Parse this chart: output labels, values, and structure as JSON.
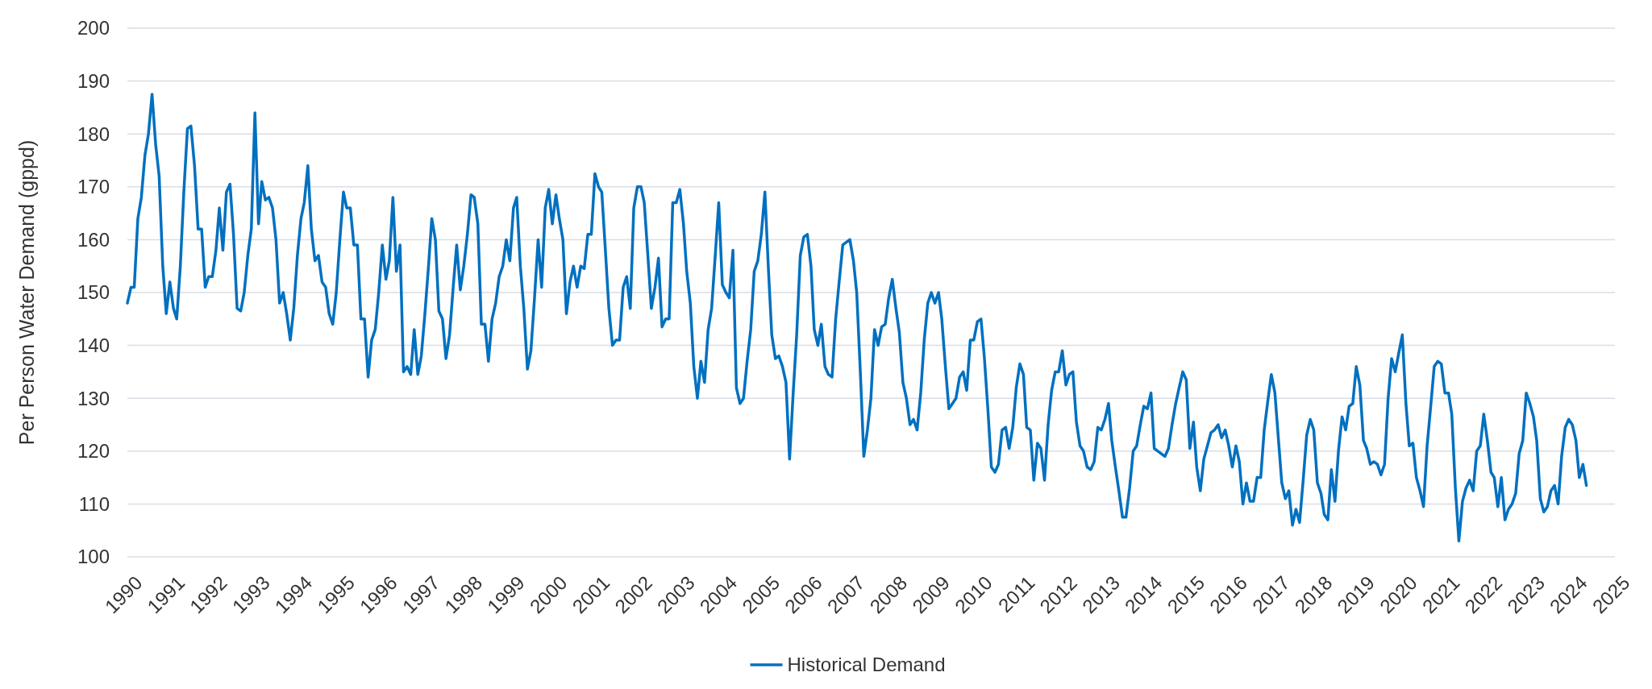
{
  "chart_data": {
    "type": "line",
    "ylabel": "Per Person Water Demand (gppd)",
    "xlim": [
      "1990",
      "2025"
    ],
    "xticks": [
      "1990",
      "1991",
      "1992",
      "1993",
      "1994",
      "1995",
      "1996",
      "1997",
      "1998",
      "1999",
      "2000",
      "2001",
      "2002",
      "2003",
      "2004",
      "2005",
      "2006",
      "2007",
      "2008",
      "2009",
      "2010",
      "2011",
      "2012",
      "2013",
      "2014",
      "2015",
      "2016",
      "2017",
      "2018",
      "2019",
      "2020",
      "2021",
      "2022",
      "2023",
      "2024",
      "2025"
    ],
    "ylim": [
      100,
      200
    ],
    "yticks": [
      100,
      110,
      120,
      130,
      140,
      150,
      160,
      170,
      180,
      190,
      200
    ],
    "grid": "y",
    "legend": "bottom",
    "line_style": "solid",
    "x": [
      "1990-01",
      "1990-02",
      "1990-03",
      "1990-04",
      "1990-05",
      "1990-06",
      "1990-07",
      "1990-08",
      "1990-09",
      "1990-10",
      "1990-11",
      "1990-12",
      "1991-01",
      "1991-02",
      "1991-03",
      "1991-04",
      "1991-05",
      "1991-06",
      "1991-07",
      "1991-08",
      "1991-09",
      "1991-10",
      "1991-11",
      "1991-12",
      "1992-01",
      "1992-02",
      "1992-03",
      "1992-04",
      "1992-05",
      "1992-06",
      "1992-07",
      "1992-08",
      "1992-09",
      "1992-10",
      "1992-11",
      "1992-12",
      "1993-01",
      "1993-02",
      "1993-03",
      "1993-04",
      "1993-05",
      "1993-06",
      "1993-07",
      "1993-08",
      "1993-09",
      "1993-10",
      "1993-11",
      "1993-12",
      "1994-01",
      "1994-02",
      "1994-03",
      "1994-04",
      "1994-05",
      "1994-06",
      "1994-07",
      "1994-08",
      "1994-09",
      "1994-10",
      "1994-11",
      "1994-12",
      "1995-01",
      "1995-02",
      "1995-03",
      "1995-04",
      "1995-05",
      "1995-06",
      "1995-07",
      "1995-08",
      "1995-09",
      "1995-10",
      "1995-11",
      "1995-12",
      "1996-01",
      "1996-02",
      "1996-03",
      "1996-04",
      "1996-05",
      "1996-06",
      "1996-07",
      "1996-08",
      "1996-09",
      "1996-10",
      "1996-11",
      "1996-12",
      "1997-01",
      "1997-02",
      "1997-03",
      "1997-04",
      "1997-05",
      "1997-06",
      "1997-07",
      "1997-08",
      "1997-09",
      "1997-10",
      "1997-11",
      "1997-12",
      "1998-01",
      "1998-02",
      "1998-03",
      "1998-04",
      "1998-05",
      "1998-06",
      "1998-07",
      "1998-08",
      "1998-09",
      "1998-10",
      "1998-11",
      "1998-12",
      "1999-01",
      "1999-02",
      "1999-03",
      "1999-04",
      "1999-05",
      "1999-06",
      "1999-07",
      "1999-08",
      "1999-09",
      "1999-10",
      "1999-11",
      "1999-12",
      "2000-01",
      "2000-02",
      "2000-03",
      "2000-04",
      "2000-05",
      "2000-06",
      "2000-07",
      "2000-08",
      "2000-09",
      "2000-10",
      "2000-11",
      "2000-12",
      "2001-01",
      "2001-02",
      "2001-03",
      "2001-04",
      "2001-05",
      "2001-06",
      "2001-07",
      "2001-08",
      "2001-09",
      "2001-10",
      "2001-11",
      "2001-12",
      "2002-01",
      "2002-02",
      "2002-03",
      "2002-04",
      "2002-05",
      "2002-06",
      "2002-07",
      "2002-08",
      "2002-09",
      "2002-10",
      "2002-11",
      "2002-12",
      "2003-01",
      "2003-02",
      "2003-03",
      "2003-04",
      "2003-05",
      "2003-06",
      "2003-07",
      "2003-08",
      "2003-09",
      "2003-10",
      "2003-11",
      "2003-12",
      "2004-01",
      "2004-02",
      "2004-03",
      "2004-04",
      "2004-05",
      "2004-06",
      "2004-07",
      "2004-08",
      "2004-09",
      "2004-10",
      "2004-11",
      "2004-12",
      "2005-01",
      "2005-02",
      "2005-03",
      "2005-04",
      "2005-05",
      "2005-06",
      "2005-07",
      "2005-08",
      "2005-09",
      "2005-10",
      "2005-11",
      "2005-12",
      "2006-01",
      "2006-02",
      "2006-03",
      "2006-04",
      "2006-05",
      "2006-06",
      "2006-07",
      "2006-08",
      "2006-09",
      "2006-10",
      "2006-11",
      "2006-12",
      "2007-01",
      "2007-02",
      "2007-03",
      "2007-04",
      "2007-05",
      "2007-06",
      "2007-07",
      "2007-08",
      "2007-09",
      "2007-10",
      "2007-11",
      "2007-12",
      "2008-01",
      "2008-02",
      "2008-03",
      "2008-04",
      "2008-05",
      "2008-06",
      "2008-07",
      "2008-08",
      "2008-09",
      "2008-10",
      "2008-11",
      "2008-12",
      "2009-01",
      "2009-02",
      "2009-03",
      "2009-04",
      "2009-05",
      "2009-06",
      "2009-07",
      "2009-08",
      "2009-09",
      "2009-10",
      "2009-11",
      "2009-12",
      "2010-01",
      "2010-02",
      "2010-03",
      "2010-04",
      "2010-05",
      "2010-06",
      "2010-07",
      "2010-08",
      "2010-09",
      "2010-10",
      "2010-11",
      "2010-12",
      "2011-01",
      "2011-02",
      "2011-03",
      "2011-04",
      "2011-05",
      "2011-06",
      "2011-07",
      "2011-08",
      "2011-09",
      "2011-10",
      "2011-11",
      "2011-12",
      "2012-01",
      "2012-02",
      "2012-03",
      "2012-04",
      "2012-05",
      "2012-06",
      "2012-07",
      "2012-08",
      "2012-09",
      "2012-10",
      "2012-11",
      "2012-12",
      "2013-01",
      "2013-02",
      "2013-03",
      "2013-04",
      "2013-05",
      "2013-06",
      "2013-07",
      "2013-08",
      "2013-09",
      "2013-10",
      "2013-11",
      "2013-12",
      "2014-01",
      "2014-02",
      "2014-03",
      "2014-04",
      "2014-05",
      "2014-06",
      "2014-07",
      "2014-08",
      "2014-09",
      "2014-10",
      "2014-11",
      "2014-12",
      "2015-01",
      "2015-02",
      "2015-03",
      "2015-04",
      "2015-05",
      "2015-06",
      "2015-07",
      "2015-08",
      "2015-09",
      "2015-10",
      "2015-11",
      "2015-12",
      "2016-01",
      "2016-02",
      "2016-03",
      "2016-04",
      "2016-05",
      "2016-06",
      "2016-07",
      "2016-08",
      "2016-09",
      "2016-10",
      "2016-11",
      "2016-12",
      "2017-01",
      "2017-02",
      "2017-03",
      "2017-04",
      "2017-05",
      "2017-06",
      "2017-07",
      "2017-08",
      "2017-09",
      "2017-10",
      "2017-11",
      "2017-12",
      "2018-01",
      "2018-02",
      "2018-03",
      "2018-04",
      "2018-05",
      "2018-06",
      "2018-07",
      "2018-08",
      "2018-09",
      "2018-10",
      "2018-11",
      "2018-12",
      "2019-01",
      "2019-02",
      "2019-03",
      "2019-04",
      "2019-05",
      "2019-06",
      "2019-07",
      "2019-08",
      "2019-09",
      "2019-10",
      "2019-11",
      "2019-12",
      "2020-01",
      "2020-02",
      "2020-03",
      "2020-04",
      "2020-05",
      "2020-06",
      "2020-07",
      "2020-08",
      "2020-09",
      "2020-10",
      "2020-11",
      "2020-12",
      "2021-01",
      "2021-02",
      "2021-03",
      "2021-04",
      "2021-05",
      "2021-06",
      "2021-07",
      "2021-08",
      "2021-09",
      "2021-10",
      "2021-11",
      "2021-12",
      "2022-01",
      "2022-02",
      "2022-03",
      "2022-04",
      "2022-05",
      "2022-06",
      "2022-07",
      "2022-08",
      "2022-09",
      "2022-10",
      "2022-11",
      "2022-12",
      "2023-01",
      "2023-02",
      "2023-03",
      "2023-04",
      "2023-05",
      "2023-06",
      "2023-07",
      "2023-08",
      "2023-09",
      "2023-10",
      "2023-11",
      "2023-12",
      "2024-01",
      "2024-02",
      "2024-03",
      "2024-04",
      "2024-05"
    ],
    "series": [
      {
        "name": "Historical Demand",
        "color": "#0070c0",
        "values": [
          148,
          151,
          151,
          164,
          168,
          176,
          180,
          187.5,
          178,
          172,
          155,
          146,
          152,
          147,
          145,
          155,
          169,
          181,
          181.5,
          174,
          162,
          162,
          151,
          153,
          153,
          158,
          166,
          158,
          169,
          170.5,
          161,
          147,
          146.5,
          150,
          157,
          162,
          184,
          163,
          171,
          167.5,
          168,
          166,
          160,
          148,
          150,
          146,
          141,
          147,
          157,
          164,
          167,
          174,
          162,
          156,
          157,
          152,
          151,
          146,
          144,
          150,
          160,
          169,
          166,
          166,
          159,
          159,
          145,
          145,
          134,
          141,
          143,
          150,
          159,
          152.5,
          156,
          168,
          154,
          159,
          135,
          136,
          134.5,
          143,
          134.5,
          138,
          146,
          155,
          164,
          160,
          146.5,
          145,
          137.5,
          142,
          151,
          159,
          150.5,
          155,
          161,
          168.5,
          168,
          163,
          144,
          144,
          137,
          145,
          148,
          153,
          155,
          160,
          156,
          166,
          168,
          155,
          147,
          135.5,
          139,
          149,
          160,
          151,
          166,
          169.5,
          163,
          168.5,
          164,
          160,
          146,
          152,
          155,
          151,
          155,
          154.5,
          161,
          161,
          172.5,
          170,
          169,
          158,
          147,
          140,
          141,
          141,
          151,
          153,
          147,
          166,
          170,
          170,
          167,
          157,
          147,
          151,
          156.5,
          143.5,
          145,
          145,
          167,
          167,
          169.5,
          163,
          154,
          148,
          136,
          130,
          137,
          133,
          143,
          147,
          157,
          167,
          151.5,
          150,
          149,
          158,
          132,
          129,
          130,
          137,
          143,
          154,
          156,
          161,
          169,
          154,
          142,
          137.5,
          138,
          136,
          133,
          118.5,
          131,
          142,
          157,
          160.5,
          161,
          155,
          143,
          140,
          144,
          136,
          134.5,
          134,
          145,
          152,
          159,
          159.5,
          160,
          156,
          150,
          135,
          119,
          124,
          130,
          143,
          140,
          143.5,
          144,
          149,
          152.5,
          147,
          142.5,
          133,
          130,
          125,
          126,
          124,
          131,
          141,
          148,
          150,
          148,
          150,
          145,
          136,
          128,
          129,
          130,
          134,
          135,
          131.5,
          141,
          141,
          144.5,
          145,
          138,
          128,
          117,
          116,
          117.5,
          124,
          124.5,
          120.5,
          124.5,
          132,
          136.5,
          134.5,
          124.5,
          124,
          114.5,
          121.5,
          120.5,
          114.5,
          125,
          131.5,
          135,
          135,
          139,
          132.5,
          134.5,
          135,
          125.5,
          121,
          120,
          117,
          116.5,
          118,
          124.5,
          124,
          126,
          129,
          122,
          117,
          112.5,
          107.5,
          107.5,
          113,
          120,
          121,
          125,
          128.5,
          128,
          131,
          120.5,
          120,
          119.5,
          119,
          120.5,
          125,
          129,
          132,
          135,
          133.5,
          120.5,
          125.5,
          117,
          112.5,
          118.5,
          121,
          123.5,
          124,
          125,
          122.5,
          124,
          121,
          117,
          121,
          118,
          110,
          114,
          110.5,
          110.5,
          115,
          115,
          124,
          129.5,
          134.5,
          131,
          122,
          114,
          111,
          112.5,
          106,
          109,
          106.5,
          114.5,
          123,
          126,
          124,
          114,
          112,
          108,
          107,
          116.5,
          110.5,
          120,
          126.5,
          124,
          128.5,
          129,
          136,
          132.5,
          122,
          120.5,
          117.5,
          118,
          117.5,
          115.5,
          117.5,
          130,
          137.5,
          135,
          138.5,
          142,
          129,
          121,
          121.5,
          115,
          112.5,
          109.5,
          121,
          128.5,
          136,
          137,
          136.5,
          131,
          131,
          127,
          113,
          103,
          110.5,
          113,
          114.5,
          112.5,
          120,
          121,
          127,
          122,
          116,
          115,
          109.5,
          115,
          107,
          109,
          110,
          112,
          119.5,
          122,
          131,
          129,
          126.5,
          122,
          111,
          108.5,
          109.5,
          112.5,
          113.5,
          110,
          119,
          124.5,
          126,
          125,
          122,
          115,
          117.5,
          113.5
        ]
      }
    ]
  }
}
